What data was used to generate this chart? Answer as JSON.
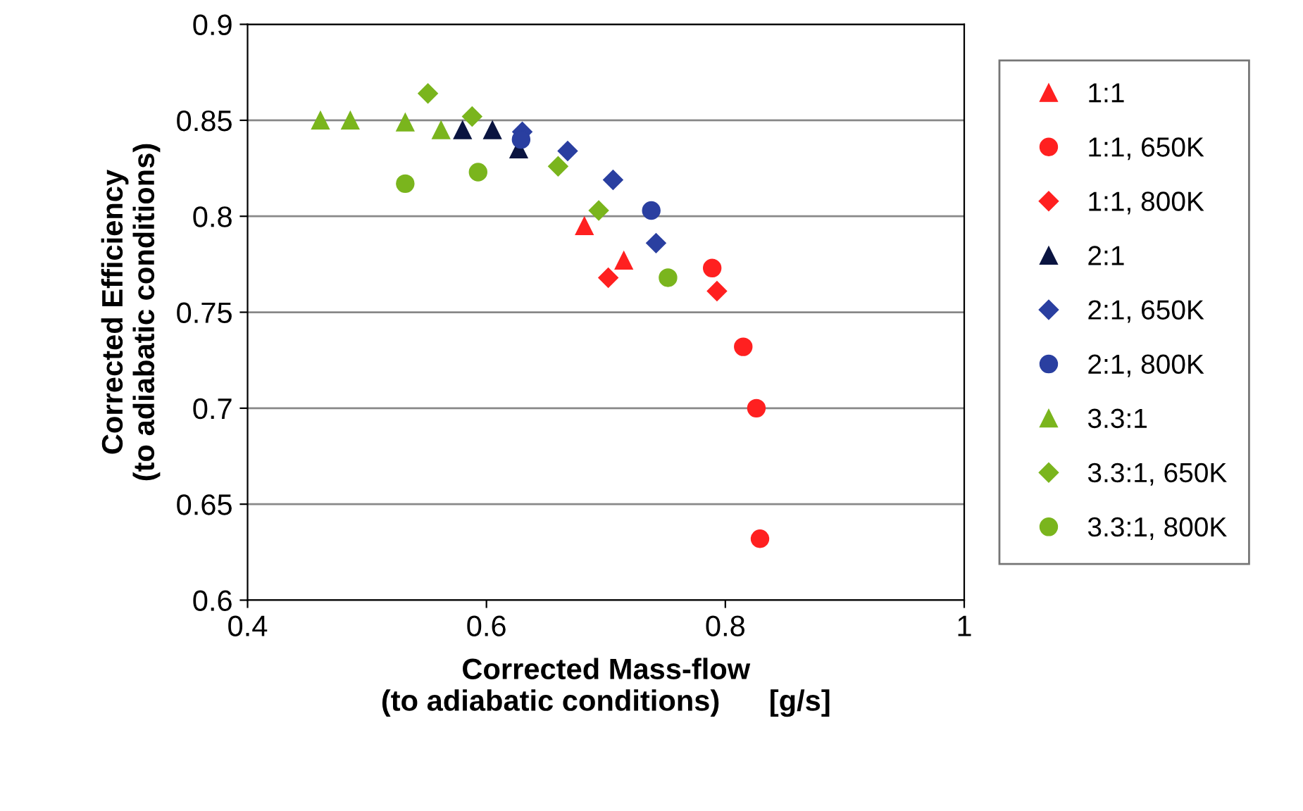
{
  "chart_data": {
    "type": "scatter",
    "xlabel": "Corrected Mass-flow\n(to adiabatic conditions)      [g/s]",
    "ylabel": "Corrected Efficiency\n(to adiabatic conditions)",
    "xlim": [
      0.4,
      1
    ],
    "xticks": [
      0.4,
      0.6,
      0.8,
      1
    ],
    "ylim": [
      0.6,
      0.9
    ],
    "yticks": [
      0.6,
      0.65,
      0.7,
      0.75,
      0.8,
      0.85,
      0.9
    ],
    "grid": "y",
    "legend": "right",
    "series": [
      {
        "name": "1:1",
        "color": "#ff2020",
        "marker": "triangle",
        "x": [
          0.682,
          0.715
        ],
        "values": [
          0.795,
          0.777
        ]
      },
      {
        "name": "1:1, 650K",
        "color": "#ff2020",
        "marker": "circle",
        "x": [
          0.789,
          0.815,
          0.826,
          0.829
        ],
        "values": [
          0.773,
          0.732,
          0.7,
          0.632
        ]
      },
      {
        "name": "1:1, 800K",
        "color": "#ff2020",
        "marker": "diamond",
        "x": [
          0.702,
          0.793
        ],
        "values": [
          0.768,
          0.761
        ]
      },
      {
        "name": "2:1",
        "color": "#0a1440",
        "marker": "triangle",
        "x": [
          0.58,
          0.605,
          0.627
        ],
        "values": [
          0.845,
          0.845,
          0.835
        ]
      },
      {
        "name": "2:1, 650K",
        "color": "#2a3fa0",
        "marker": "diamond",
        "x": [
          0.63,
          0.668,
          0.706,
          0.742
        ],
        "values": [
          0.844,
          0.834,
          0.819,
          0.786
        ]
      },
      {
        "name": "2:1, 800K",
        "color": "#2a3fa0",
        "marker": "circle",
        "x": [
          0.629,
          0.738
        ],
        "values": [
          0.84,
          0.803
        ]
      },
      {
        "name": "3.3:1",
        "color": "#7ab51d",
        "marker": "triangle",
        "x": [
          0.461,
          0.486,
          0.532,
          0.562
        ],
        "values": [
          0.85,
          0.85,
          0.849,
          0.845
        ]
      },
      {
        "name": "3.3:1, 650K",
        "color": "#7ab51d",
        "marker": "diamond",
        "x": [
          0.551,
          0.588,
          0.66,
          0.694
        ],
        "values": [
          0.864,
          0.852,
          0.826,
          0.803
        ]
      },
      {
        "name": "3.3:1, 800K",
        "color": "#7ab51d",
        "marker": "circle",
        "x": [
          0.532,
          0.593,
          0.752
        ],
        "values": [
          0.817,
          0.823,
          0.768
        ]
      }
    ]
  }
}
